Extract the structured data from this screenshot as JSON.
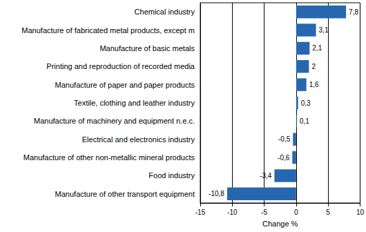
{
  "chart_data": {
    "type": "bar",
    "orientation": "horizontal",
    "categories": [
      "Chemical industry",
      "Manufacture of fabricated metal products, except m",
      "Manufacture of basic metals",
      "Printing and reproduction of recorded media",
      "Manufacture of paper and paper products",
      "Textile, clothing and leather industry",
      "Manufacture of machinery and equipment n.e.c.",
      "Electrical and electronics industry",
      "Manufacture of other non-metallic mineral products",
      "Food industry",
      "Manufacture of other transport equipment"
    ],
    "values": [
      7.8,
      3.1,
      2.1,
      2,
      1.6,
      0.3,
      0.1,
      -0.5,
      -0.6,
      -3.4,
      -10.8
    ],
    "value_labels": [
      "7,8",
      "3,1",
      "2,1",
      "2",
      "1,6",
      "0,3",
      "0,1",
      "-0,5",
      "-0,6",
      "-3,4",
      "-10,8"
    ],
    "data_labels": true,
    "color": "#2767b0",
    "x_label": "Change %",
    "xlim": [
      -15,
      10
    ],
    "xticks": [
      -15,
      -10,
      -5,
      0,
      5,
      10
    ],
    "grid": true
  }
}
